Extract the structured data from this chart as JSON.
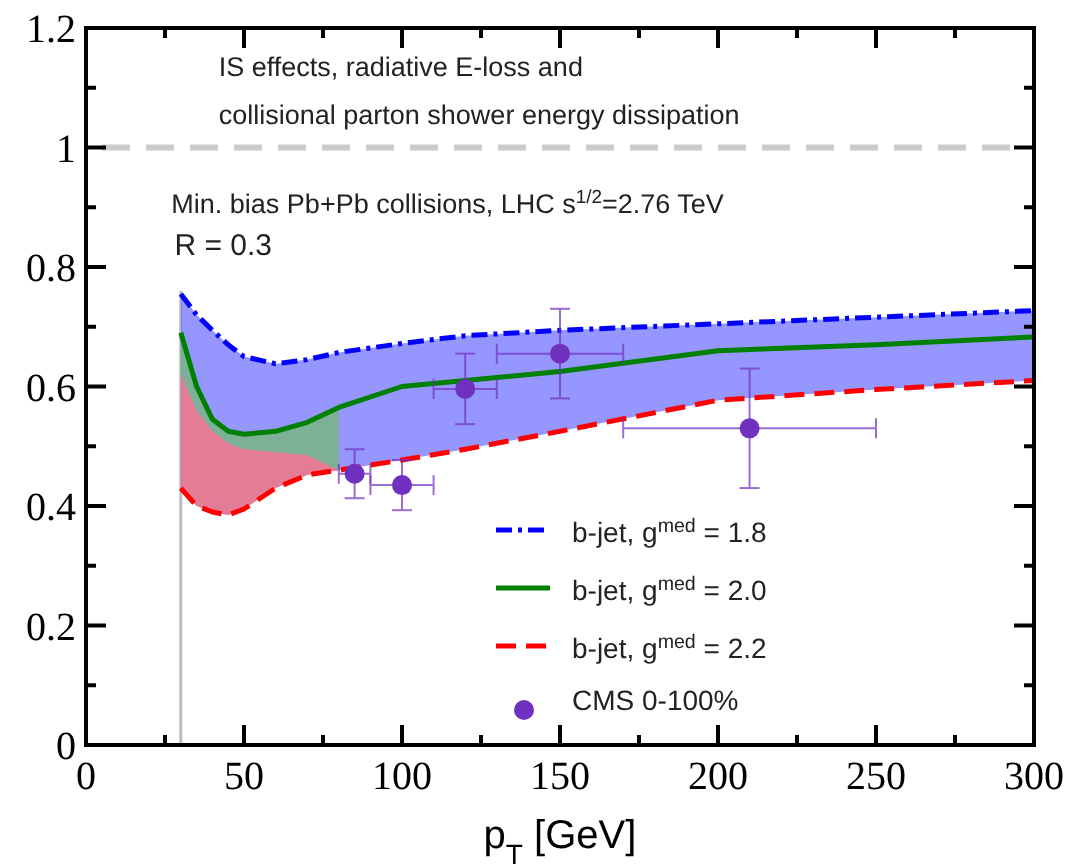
{
  "chart_data": {
    "type": "line",
    "xlabel": "p$_{T}$ [GeV]",
    "annotations": [
      "IS effects, radiative E-loss and",
      "collisional parton shower energy dissipation",
      "Min. bias Pb+Pb collisions, LHC s$^{1/2}$=2.76 TeV",
      "R = 0.3"
    ],
    "xlim": [
      0,
      300
    ],
    "ylim": [
      0,
      1.2
    ],
    "xticks": [
      0,
      {
        "value": 25,
        "label": null
      },
      50,
      {
        "value": 75,
        "label": null
      },
      100,
      {
        "value": 125,
        "label": null
      },
      150,
      {
        "value": 175,
        "label": null
      },
      200,
      {
        "value": 225,
        "label": null
      },
      250,
      {
        "value": 275,
        "label": null
      },
      300
    ],
    "yticks": [
      0,
      {
        "value": 0.1,
        "label": null
      },
      0.2,
      {
        "value": 0.3,
        "label": null
      },
      0.4,
      {
        "value": 0.5,
        "label": null
      },
      0.6,
      {
        "value": 0.7,
        "label": null
      },
      0.8,
      {
        "value": 0.9,
        "label": null
      },
      1,
      {
        "value": 1.1,
        "label": null
      },
      1.2
    ],
    "ref_lines": [
      {
        "axis": "y",
        "value": 1,
        "color": "#cccccc",
        "line_style": "dashed"
      },
      {
        "axis": "x",
        "value": 30,
        "color": "#bbbbbb",
        "line_style": "solid"
      }
    ],
    "legend": "bottom right",
    "grid": false,
    "series": [
      {
        "name": "b-jet, g$^{med}$ = 1.8",
        "color": "#0000ff",
        "line_style": "dotted",
        "x": [
          30,
          35,
          40,
          45,
          50,
          60,
          70,
          80,
          100,
          120,
          150,
          200,
          250,
          300
        ],
        "values": [
          0.755,
          0.72,
          0.694,
          0.67,
          0.65,
          0.638,
          0.645,
          0.657,
          0.672,
          0.685,
          0.694,
          0.705,
          0.716,
          0.727
        ],
        "lower": [
          0.43,
          0.4,
          0.39,
          0.385,
          0.395,
          0.43,
          0.452,
          0.46,
          0.477,
          0.495,
          0.525,
          0.577,
          0.595,
          0.61
        ],
        "upper": [
          0.755,
          0.72,
          0.694,
          0.67,
          0.65,
          0.638,
          0.645,
          0.657,
          0.672,
          0.685,
          0.694,
          0.705,
          0.716,
          0.727
        ]
      },
      {
        "name": "b-jet, g$^{med}$ = 2.0",
        "color": "#008000",
        "line_style": "solid",
        "x": [
          30,
          35,
          40,
          45,
          50,
          60,
          70,
          80,
          100,
          120,
          150,
          200,
          250,
          300
        ],
        "values": [
          0.69,
          0.6,
          0.545,
          0.525,
          0.52,
          0.525,
          0.54,
          0.565,
          0.6,
          0.61,
          0.625,
          0.66,
          0.67,
          0.683
        ],
        "lower": [
          0.62,
          0.56,
          0.525,
          0.505,
          0.495,
          0.49,
          0.485,
          0.46,
          null,
          null,
          null,
          null,
          null,
          null
        ],
        "upper": [
          0.69,
          0.6,
          0.545,
          0.525,
          0.52,
          0.525,
          0.54,
          0.565,
          null,
          null,
          null,
          null,
          null,
          null
        ]
      },
      {
        "name": "b-jet, g$^{med}$ = 2.2",
        "color": "#ff0000",
        "line_style": "dashed",
        "x": [
          30,
          35,
          40,
          45,
          50,
          60,
          70,
          80,
          100,
          120,
          150,
          200,
          250,
          300
        ],
        "values": [
          0.43,
          0.4,
          0.39,
          0.385,
          0.395,
          0.43,
          0.452,
          0.46,
          0.477,
          0.495,
          0.525,
          0.577,
          0.595,
          0.61
        ],
        "lower": [
          0.43,
          0.4,
          0.39,
          0.385,
          0.395,
          0.43,
          0.452,
          0.46,
          null,
          null,
          null,
          null,
          null,
          null
        ],
        "upper": [
          0.62,
          0.56,
          0.525,
          0.505,
          0.495,
          0.49,
          0.485,
          0.46,
          null,
          null,
          null,
          null,
          null,
          null
        ]
      },
      {
        "name": "CMS 0-100%",
        "type": "scatter",
        "color": "#7030c0",
        "marker": "circle",
        "x": [
          85,
          100,
          120,
          150,
          210
        ],
        "values": [
          0.454,
          0.435,
          0.596,
          0.655,
          0.53
        ],
        "errors": [
          0.041,
          0.042,
          0.059,
          0.075,
          0.1
        ],
        "xerrors": [
          5,
          10,
          10,
          20,
          40
        ]
      }
    ]
  }
}
